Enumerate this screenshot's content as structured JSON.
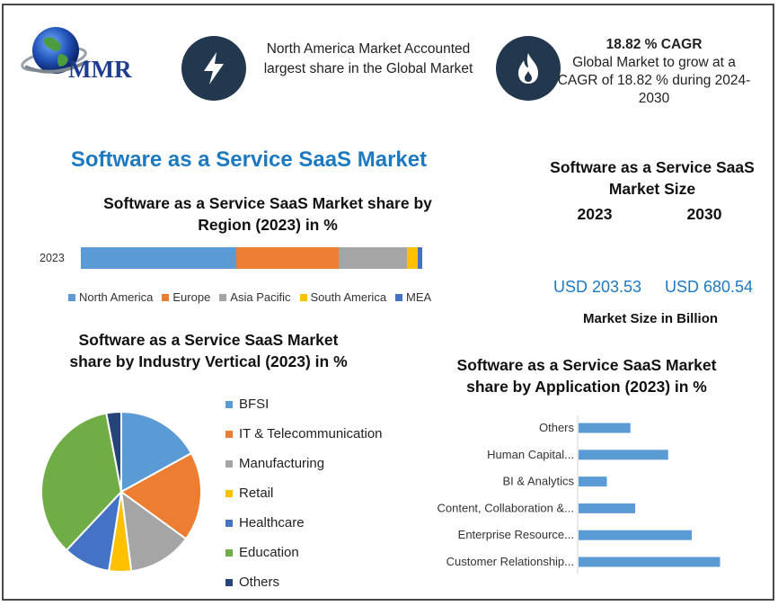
{
  "brand": {
    "logo_text": "MMR"
  },
  "header": {
    "highlight_text": "North America Market Accounted largest share in the Global Market",
    "cagr_title": "18.82 % CAGR",
    "cagr_text": "Global Market to grow at a CAGR of 18.82 % during 2024-2030",
    "icons": [
      "lightning-icon",
      "flame-icon"
    ]
  },
  "main_title": "Software as a Service SaaS Market",
  "market_size": {
    "title": "Software as a Service SaaS Market Size",
    "year1": "2023",
    "year2": "2030",
    "value1": "USD 203.53",
    "value2": "USD 680.54",
    "note": "Market Size in Billion"
  },
  "colors": {
    "blue": "#5b9bd5",
    "orange": "#ed7d31",
    "gray": "#a5a5a5",
    "yellow": "#ffc000",
    "dark_blue": "#4472c4",
    "green": "#70ad47",
    "navy": "#264478",
    "brand_blue": "#1d7ac0",
    "icon_bg": "#22384f"
  },
  "chart_data": [
    {
      "type": "bar",
      "orientation": "horizontal-stacked",
      "title": "Software as a Service SaaS Market share by Region (2023) in %",
      "categories": [
        "2023"
      ],
      "series": [
        {
          "name": "North America",
          "values": [
            45.5
          ],
          "color": "#5b9bd5"
        },
        {
          "name": "Europe",
          "values": [
            30.0
          ],
          "color": "#ed7d31"
        },
        {
          "name": "Asia Pacific",
          "values": [
            20.0
          ],
          "color": "#a5a5a5"
        },
        {
          "name": "South America",
          "values": [
            3.2
          ],
          "color": "#ffc000"
        },
        {
          "name": "MEA",
          "values": [
            1.3
          ],
          "color": "#4472c4"
        }
      ],
      "legend": "bottom"
    },
    {
      "type": "pie",
      "title": "Software as a Service SaaS Market share by Industry Vertical (2023) in %",
      "labels": [
        "BFSI",
        "IT & Telecommunication",
        "Manufacturing",
        "Retail",
        "Healthcare",
        "Education",
        "Others"
      ],
      "values": [
        17,
        18,
        13,
        4.5,
        9.5,
        35,
        3
      ],
      "colors": [
        "#5b9bd5",
        "#ed7d31",
        "#a5a5a5",
        "#ffc000",
        "#4472c4",
        "#70ad47",
        "#264478"
      ],
      "legend": "right"
    },
    {
      "type": "bar",
      "orientation": "horizontal",
      "title": "Software as a Service SaaS Market share by Application (2023) in %",
      "categories": [
        "Others",
        "Human Capital...",
        "BI & Analytics",
        "Content, Collaboration &...",
        "Enterprise Resource...",
        "Customer Relationship..."
      ],
      "values": [
        11,
        19,
        6,
        12,
        24,
        30
      ],
      "color": "#5b9bd5",
      "xlim": [
        0,
        40
      ]
    }
  ]
}
